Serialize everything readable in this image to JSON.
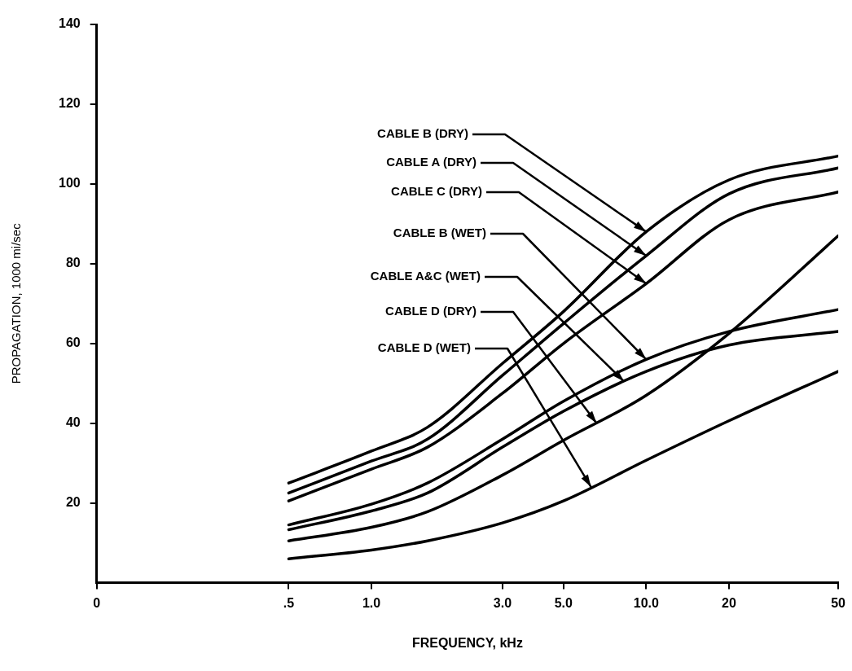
{
  "chart_data": {
    "type": "line",
    "xlabel": "FREQUENCY, kHz",
    "ylabel": "PROPAGATION, 1000 mi/sec",
    "log": "x",
    "xlim": [
      0.1,
      50
    ],
    "xticks": [
      {
        "value": 0.1,
        "label": "0"
      },
      {
        "value": 0.5,
        "label": ".5"
      },
      {
        "value": 1,
        "label": "1.0"
      },
      {
        "value": 3,
        "label": "3.0"
      },
      {
        "value": 5,
        "label": "5.0"
      },
      {
        "value": 10,
        "label": "10.0"
      },
      20,
      50
    ],
    "ylim": [
      0,
      140
    ],
    "yticks": [
      20,
      40,
      60,
      80,
      100,
      120,
      140
    ],
    "grid": false,
    "legend": false,
    "marker": "none",
    "line_style": "solid",
    "x": [
      0.5,
      1,
      1.6,
      3,
      5,
      10,
      20,
      50
    ],
    "series": [
      {
        "color": "#000000",
        "values": [
          25,
          33,
          39,
          55,
          68,
          88,
          101,
          107
        ]
      },
      {
        "color": "#000000",
        "values": [
          22.5,
          30.5,
          36,
          52,
          65,
          82,
          97.5,
          104
        ]
      },
      {
        "color": "#000000",
        "values": [
          20.5,
          28.5,
          34,
          47.5,
          60,
          75,
          91,
          98
        ]
      },
      {
        "color": "#000000",
        "values": [
          14.5,
          19.7,
          25,
          36,
          45.5,
          56,
          63,
          68.5
        ]
      },
      {
        "color": "#000000",
        "values": [
          13.3,
          18,
          22.5,
          34,
          43,
          53,
          59.6,
          63
        ]
      },
      {
        "color": "#000000",
        "values": [
          10.5,
          13.9,
          17.8,
          27,
          35.7,
          47,
          62.5,
          87
        ]
      },
      {
        "color": "#000000",
        "values": [
          6,
          8.2,
          10.5,
          15,
          20.5,
          30.7,
          40.6,
          53
        ]
      }
    ],
    "annotations": [
      {
        "text": "CABLE B (DRY)",
        "x": 10,
        "y": 88
      },
      {
        "text": "CABLE A (DRY)",
        "x": 10,
        "y": 82
      },
      {
        "text": "CABLE C (DRY)",
        "x": 10,
        "y": 75
      },
      {
        "text": "CABLE B (WET)",
        "x": 10,
        "y": 56
      },
      {
        "text": "CABLE A&C (WET)",
        "x": 8.3,
        "y": 50.5
      },
      {
        "text": "CABLE D (DRY)",
        "x": 6.6,
        "y": 40
      },
      {
        "text": "CABLE D (WET)",
        "x": 6.3,
        "y": 24
      }
    ]
  }
}
